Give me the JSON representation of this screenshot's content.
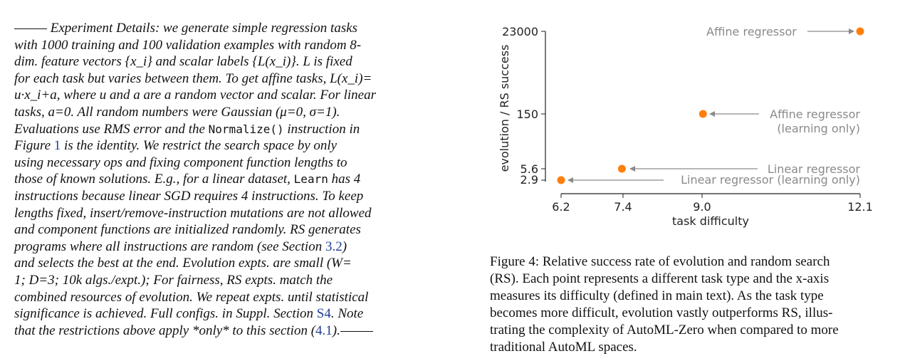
{
  "paragraph": {
    "l1": "Experiment Details: we generate simple regression tasks",
    "l2": "with 1000 training and 100 validation examples with random 8-",
    "l3": "dim. feature vectors {x_i} and scalar labels {L(x_i)}. L is fixed",
    "l4": "for each task but varies between them. To get affine tasks, L(x_i)=",
    "l5": "u·x_i+a, where u and a are a random vector and scalar. For linear",
    "l6": "tasks, a=0. All random numbers were Gaussian (μ=0, σ=1).",
    "l7a": "Evaluations use RMS error and the",
    "l7code": "Normalize()",
    "l7b": "instruction in",
    "l8a": "Figure",
    "l8ref": "1",
    "l8b": "is the identity. We restrict the search space by only",
    "l9": "using necessary ops and fixing component function lengths to",
    "l10a": "those of known solutions. E.g., for a linear dataset,",
    "l10code": "Learn",
    "l10b": "has 4",
    "l11": "instructions because linear SGD requires 4 instructions. To keep",
    "l12": "lengths fixed, insert/remove-instruction mutations are not allowed",
    "l13": "and component functions are initialized randomly. RS generates",
    "l14a": "programs where all instructions are random (see Section",
    "l14ref": "3.2",
    "l14b": ")",
    "l15": "and selects the best at the end. Evolution expts. are small (W=",
    "l16": "1; D=3; 10k algs./expt.); For fairness, RS expts. match the",
    "l17": "combined resources of evolution. We repeat expts. until statistical",
    "l18a": "significance is achieved. Full configs. in Suppl. Section",
    "l18ref": "S4",
    "l18b": ". Note",
    "l19a": "that the restrictions above apply *only* to this section (",
    "l19ref": "4.1",
    "l19b": ")."
  },
  "chart_data": {
    "type": "scatter",
    "xlabel": "task difficulty",
    "ylabel": "evolution / RS success",
    "x_ticks": [
      "6.2",
      "7.4",
      "9.0",
      "12.1"
    ],
    "y_ticks": [
      "2.9",
      "5.6",
      "150",
      "23000"
    ],
    "points": [
      {
        "x": 6.2,
        "y": 2.9,
        "label": "Linear regressor (learning only)"
      },
      {
        "x": 7.4,
        "y": 5.6,
        "label": "Linear regressor"
      },
      {
        "x": 9.0,
        "y": 150,
        "label": "Affine regressor (learning only)"
      },
      {
        "x": 12.1,
        "y": 23000,
        "label": "Affine regressor"
      }
    ],
    "annotations": {
      "affine": "Affine regressor",
      "affine_lo_1": "Affine regressor",
      "affine_lo_2": "(learning only)",
      "linear": "Linear regressor",
      "linear_lo": "Linear regressor (learning only)"
    },
    "point_color": "#ff7f0e",
    "annotation_color": "#8a8a8a"
  },
  "caption": {
    "l1": "Figure 4: Relative success rate of evolution and random search",
    "l2": "(RS). Each point represents a different task type and the x-axis",
    "l3": "measures its difficulty (defined in main text). As the task type",
    "l4": "becomes more difficult, evolution vastly outperforms RS, illus-",
    "l5": "trating the complexity of AutoML-Zero when compared to more",
    "l6": "traditional AutoML spaces."
  }
}
